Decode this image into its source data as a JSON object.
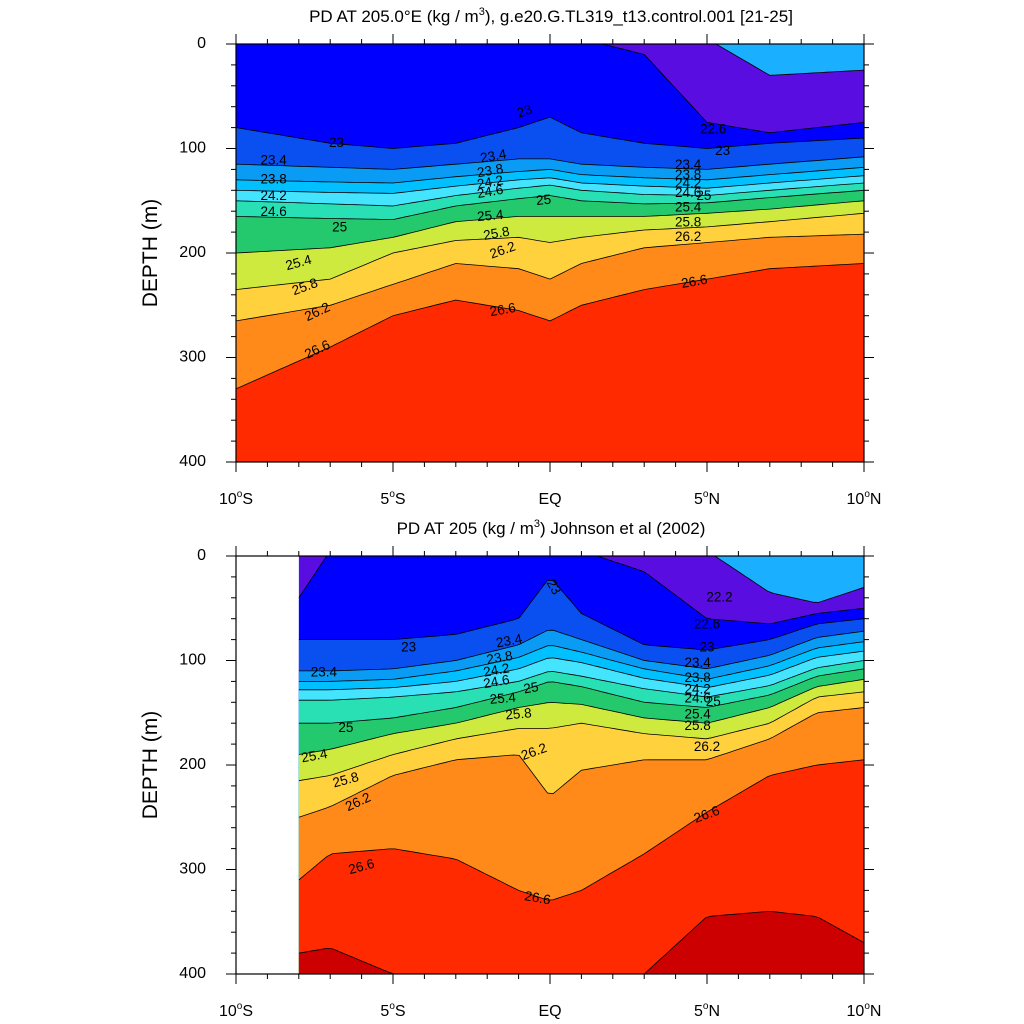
{
  "colorbands": [
    {
      "value": 22.2,
      "color": "#5a0de0"
    },
    {
      "value": 22.6,
      "color": "#0000ff"
    },
    {
      "value": 23.0,
      "color": "#0a4ff0"
    },
    {
      "value": 23.4,
      "color": "#0a9cf5"
    },
    {
      "value": 23.8,
      "color": "#00c0ff"
    },
    {
      "value": 24.2,
      "color": "#44e4ff"
    },
    {
      "value": 24.6,
      "color": "#29e0b5"
    },
    {
      "value": 25.0,
      "color": "#24c96e"
    },
    {
      "value": 25.4,
      "color": "#cfea3f"
    },
    {
      "value": 25.8,
      "color": "#ffd13d"
    },
    {
      "value": 26.2,
      "color": "#ff8a1a"
    },
    {
      "value": 26.6,
      "color": "#ff2a00"
    },
    {
      "value": 27.0,
      "color": "#cc0000"
    }
  ],
  "chart_data": [
    {
      "type": "heatmap",
      "title": "PD AT 205.0°E (kg / m³), g.e20.G.TL319_t13.control.001 [21-25]",
      "title_parts": {
        "main": "PD AT 205.0°E (kg / m",
        "sup": "3",
        "rest": "), g.e20.G.TL319_t13.control.001 [21-25]"
      },
      "ylabel": "DEPTH (m)",
      "xlabel": "",
      "xlim": [
        -10,
        10
      ],
      "ylim": [
        0,
        400
      ],
      "y_reversed": true,
      "x_ticks": [
        {
          "value": -10,
          "num": "10",
          "hemi": "S"
        },
        {
          "value": -5,
          "num": "5",
          "hemi": "S"
        },
        {
          "value": 0,
          "num": "EQ",
          "hemi": ""
        },
        {
          "value": 5,
          "num": "5",
          "hemi": "N"
        },
        {
          "value": 10,
          "num": "10",
          "hemi": "N"
        }
      ],
      "y_ticks": [
        0,
        100,
        200,
        300,
        400
      ],
      "data_x_range": [
        -10,
        10
      ],
      "contour_depths": {
        "x": [
          -10,
          -7,
          -5,
          -3,
          -1,
          0,
          1,
          3,
          5,
          7,
          10
        ],
        "levels": [
          {
            "value": 22.2,
            "depth": [
              null,
              null,
              null,
              null,
              null,
              null,
              null,
              null,
              null,
              30,
              25
            ]
          },
          {
            "value": 22.6,
            "depth": [
              null,
              null,
              null,
              null,
              null,
              null,
              null,
              10,
              75,
              85,
              75
            ]
          },
          {
            "value": 23.0,
            "depth": [
              80,
              95,
              100,
              95,
              80,
              70,
              85,
              95,
              100,
              95,
              90
            ]
          },
          {
            "value": 23.4,
            "depth": [
              115,
              118,
              120,
              115,
              110,
              110,
              115,
              118,
              120,
              115,
              108
            ]
          },
          {
            "value": 23.8,
            "depth": [
              130,
              132,
              133,
              127,
              122,
              120,
              125,
              128,
              130,
              125,
              118
            ]
          },
          {
            "value": 24.2,
            "depth": [
              140,
              142,
              143,
              136,
              130,
              128,
              133,
              136,
              138,
              133,
              126
            ]
          },
          {
            "value": 24.6,
            "depth": [
              150,
              153,
              155,
              145,
              138,
              135,
              140,
              144,
              145,
              140,
              133
            ]
          },
          {
            "value": 25.0,
            "depth": [
              165,
              167,
              168,
              155,
              148,
              145,
              150,
              153,
              152,
              147,
              140
            ]
          },
          {
            "value": 25.4,
            "depth": [
              200,
              195,
              185,
              170,
              165,
              165,
              165,
              165,
              162,
              158,
              150
            ]
          },
          {
            "value": 25.8,
            "depth": [
              235,
              225,
              200,
              188,
              185,
              190,
              185,
              178,
              175,
              170,
              162
            ]
          },
          {
            "value": 26.2,
            "depth": [
              265,
              250,
              230,
              210,
              215,
              225,
              210,
              195,
              190,
              185,
              182
            ]
          },
          {
            "value": 26.6,
            "depth": [
              330,
              290,
              260,
              245,
              255,
              265,
              250,
              235,
              225,
              215,
              210
            ]
          }
        ]
      },
      "contour_labels": [
        {
          "text": "23",
          "x": -0.8,
          "depth": 65,
          "angle": -20
        },
        {
          "text": "23",
          "x": -6.8,
          "depth": 95,
          "angle": 0
        },
        {
          "text": "22.6",
          "x": 5.2,
          "depth": 82,
          "angle": 0
        },
        {
          "text": "23.4",
          "x": -8.8,
          "depth": 112,
          "angle": 0
        },
        {
          "text": "23.4",
          "x": -1.8,
          "depth": 108,
          "angle": -10
        },
        {
          "text": "23",
          "x": 5.5,
          "depth": 103,
          "angle": 0
        },
        {
          "text": "23.8",
          "x": -8.8,
          "depth": 130,
          "angle": 0
        },
        {
          "text": "23.8",
          "x": -1.9,
          "depth": 122,
          "angle": -10
        },
        {
          "text": "24.2",
          "x": -8.8,
          "depth": 146,
          "angle": 0
        },
        {
          "text": "24.2",
          "x": -1.9,
          "depth": 133,
          "angle": -10
        },
        {
          "text": "24.6",
          "x": -8.8,
          "depth": 161,
          "angle": 0
        },
        {
          "text": "24.6",
          "x": -1.9,
          "depth": 142,
          "angle": -10
        },
        {
          "text": "25",
          "x": -0.2,
          "depth": 150,
          "angle": -5
        },
        {
          "text": "25",
          "x": -6.7,
          "depth": 176,
          "angle": 0
        },
        {
          "text": "25.4",
          "x": -1.9,
          "depth": 165,
          "angle": -5
        },
        {
          "text": "25.8",
          "x": -1.7,
          "depth": 182,
          "angle": -10
        },
        {
          "text": "25.4",
          "x": -8.0,
          "depth": 210,
          "angle": -15
        },
        {
          "text": "26.2",
          "x": -1.5,
          "depth": 198,
          "angle": -20
        },
        {
          "text": "25.8",
          "x": -7.8,
          "depth": 233,
          "angle": -20
        },
        {
          "text": "26.2",
          "x": -7.4,
          "depth": 257,
          "angle": -25
        },
        {
          "text": "26.6",
          "x": -1.5,
          "depth": 255,
          "angle": -10
        },
        {
          "text": "26.6",
          "x": -7.4,
          "depth": 293,
          "angle": -25
        },
        {
          "text": "26.6",
          "x": 4.6,
          "depth": 228,
          "angle": -10
        },
        {
          "text": "23.4",
          "x": 4.4,
          "depth": 116,
          "angle": 0
        },
        {
          "text": "23.8",
          "x": 4.4,
          "depth": 126,
          "angle": 0
        },
        {
          "text": "24.2",
          "x": 4.4,
          "depth": 134,
          "angle": 0
        },
        {
          "text": "24.6",
          "x": 4.4,
          "depth": 143,
          "angle": 0
        },
        {
          "text": "25",
          "x": 4.9,
          "depth": 146,
          "angle": 0
        },
        {
          "text": "25.4",
          "x": 4.4,
          "depth": 157,
          "angle": 0
        },
        {
          "text": "25.8",
          "x": 4.4,
          "depth": 171,
          "angle": 0
        },
        {
          "text": "26.2",
          "x": 4.4,
          "depth": 185,
          "angle": 0
        }
      ]
    },
    {
      "type": "heatmap",
      "title": "PD AT 205 (kg / m³) Johnson et al (2002)",
      "title_parts": {
        "main": "PD AT 205 (kg / m",
        "sup": "3",
        "rest": ") Johnson et al (2002)"
      },
      "ylabel": "DEPTH (m)",
      "xlabel": "",
      "xlim": [
        -10,
        10
      ],
      "ylim": [
        0,
        400
      ],
      "y_reversed": true,
      "x_ticks": [
        {
          "value": -10,
          "num": "10",
          "hemi": "S"
        },
        {
          "value": -5,
          "num": "5",
          "hemi": "S"
        },
        {
          "value": 0,
          "num": "EQ",
          "hemi": ""
        },
        {
          "value": 5,
          "num": "5",
          "hemi": "N"
        },
        {
          "value": 10,
          "num": "10",
          "hemi": "N"
        }
      ],
      "y_ticks": [
        0,
        100,
        200,
        300,
        400
      ],
      "data_x_range": [
        -8,
        10
      ],
      "contour_depths": {
        "x": [
          -8,
          -7,
          -5,
          -3,
          -1,
          0,
          1,
          3,
          5,
          7,
          8.5,
          10
        ],
        "levels": [
          {
            "value": 22.2,
            "depth": [
              null,
              null,
              null,
              null,
              null,
              null,
              null,
              null,
              null,
              35,
              45,
              30
            ]
          },
          {
            "value": 22.6,
            "depth": [
              40,
              null,
              null,
              null,
              null,
              null,
              null,
              15,
              60,
              65,
              55,
              50
            ]
          },
          {
            "value": 23.0,
            "depth": [
              80,
              80,
              80,
              75,
              60,
              20,
              55,
              85,
              90,
              80,
              65,
              60
            ]
          },
          {
            "value": 23.4,
            "depth": [
              110,
              110,
              108,
              100,
              85,
              70,
              80,
              100,
              108,
              95,
              78,
              72
            ]
          },
          {
            "value": 23.8,
            "depth": [
              120,
              120,
              118,
              110,
              97,
              85,
              92,
              108,
              118,
              105,
              88,
              82
            ]
          },
          {
            "value": 24.2,
            "depth": [
              128,
              128,
              126,
              120,
              108,
              97,
              102,
              117,
              126,
              114,
              97,
              91
            ]
          },
          {
            "value": 24.6,
            "depth": [
              138,
              138,
              135,
              130,
              120,
              110,
              115,
              127,
              135,
              124,
              107,
              100
            ]
          },
          {
            "value": 25.0,
            "depth": [
              160,
              160,
              155,
              145,
              130,
              120,
              125,
              140,
              145,
              133,
              115,
              108
            ]
          },
          {
            "value": 25.4,
            "depth": [
              190,
              185,
              170,
              160,
              145,
              140,
              142,
              155,
              160,
              145,
              125,
              118
            ]
          },
          {
            "value": 25.8,
            "depth": [
              215,
              210,
              190,
              175,
              165,
              165,
              160,
              170,
              175,
              160,
              135,
              130
            ]
          },
          {
            "value": 26.2,
            "depth": [
              250,
              240,
              210,
              195,
              190,
              230,
              205,
              195,
              195,
              175,
              150,
              145
            ]
          },
          {
            "value": 26.6,
            "depth": [
              310,
              285,
              280,
              290,
              320,
              330,
              320,
              285,
              245,
              210,
              200,
              195
            ]
          },
          {
            "value": 27.0,
            "depth": [
              380,
              375,
              400,
              400,
              null,
              null,
              null,
              400,
              345,
              340,
              345,
              370
            ]
          }
        ]
      },
      "contour_labels": [
        {
          "text": "23",
          "x": 0.1,
          "depth": 30,
          "angle": 60
        },
        {
          "text": "22.2",
          "x": 5.4,
          "depth": 40,
          "angle": 0
        },
        {
          "text": "22.6",
          "x": 5.0,
          "depth": 66,
          "angle": 0
        },
        {
          "text": "23",
          "x": -4.5,
          "depth": 88,
          "angle": 0
        },
        {
          "text": "23.4",
          "x": -1.3,
          "depth": 82,
          "angle": -10
        },
        {
          "text": "23",
          "x": 5.0,
          "depth": 88,
          "angle": 0
        },
        {
          "text": "23.4",
          "x": -7.2,
          "depth": 112,
          "angle": 0
        },
        {
          "text": "23.8",
          "x": -1.6,
          "depth": 98,
          "angle": -10
        },
        {
          "text": "23.4",
          "x": 4.7,
          "depth": 103,
          "angle": 0
        },
        {
          "text": "24.2",
          "x": -1.7,
          "depth": 110,
          "angle": -10
        },
        {
          "text": "23.8",
          "x": 4.7,
          "depth": 117,
          "angle": 0
        },
        {
          "text": "24.6",
          "x": -1.7,
          "depth": 121,
          "angle": -10
        },
        {
          "text": "25",
          "x": -0.6,
          "depth": 127,
          "angle": -10
        },
        {
          "text": "24.2",
          "x": 4.7,
          "depth": 128,
          "angle": 0
        },
        {
          "text": "25.4",
          "x": -1.5,
          "depth": 137,
          "angle": -5
        },
        {
          "text": "24.6",
          "x": 4.7,
          "depth": 137,
          "angle": 0
        },
        {
          "text": "25",
          "x": 5.2,
          "depth": 140,
          "angle": 0
        },
        {
          "text": "25",
          "x": -6.5,
          "depth": 165,
          "angle": 0
        },
        {
          "text": "25.8",
          "x": -1.0,
          "depth": 152,
          "angle": -5
        },
        {
          "text": "25.4",
          "x": 4.7,
          "depth": 152,
          "angle": 0
        },
        {
          "text": "25.8",
          "x": 4.7,
          "depth": 163,
          "angle": 0
        },
        {
          "text": "25.4",
          "x": -7.5,
          "depth": 192,
          "angle": -10
        },
        {
          "text": "26.2",
          "x": -0.5,
          "depth": 188,
          "angle": -20
        },
        {
          "text": "26.2",
          "x": 5.0,
          "depth": 183,
          "angle": 0
        },
        {
          "text": "25.8",
          "x": -6.5,
          "depth": 215,
          "angle": -15
        },
        {
          "text": "26.2",
          "x": -6.1,
          "depth": 236,
          "angle": -25
        },
        {
          "text": "26.6",
          "x": 5.0,
          "depth": 248,
          "angle": -20
        },
        {
          "text": "26.6",
          "x": -6.0,
          "depth": 298,
          "angle": -15
        },
        {
          "text": "26.6",
          "x": -0.4,
          "depth": 328,
          "angle": 10
        }
      ]
    }
  ]
}
